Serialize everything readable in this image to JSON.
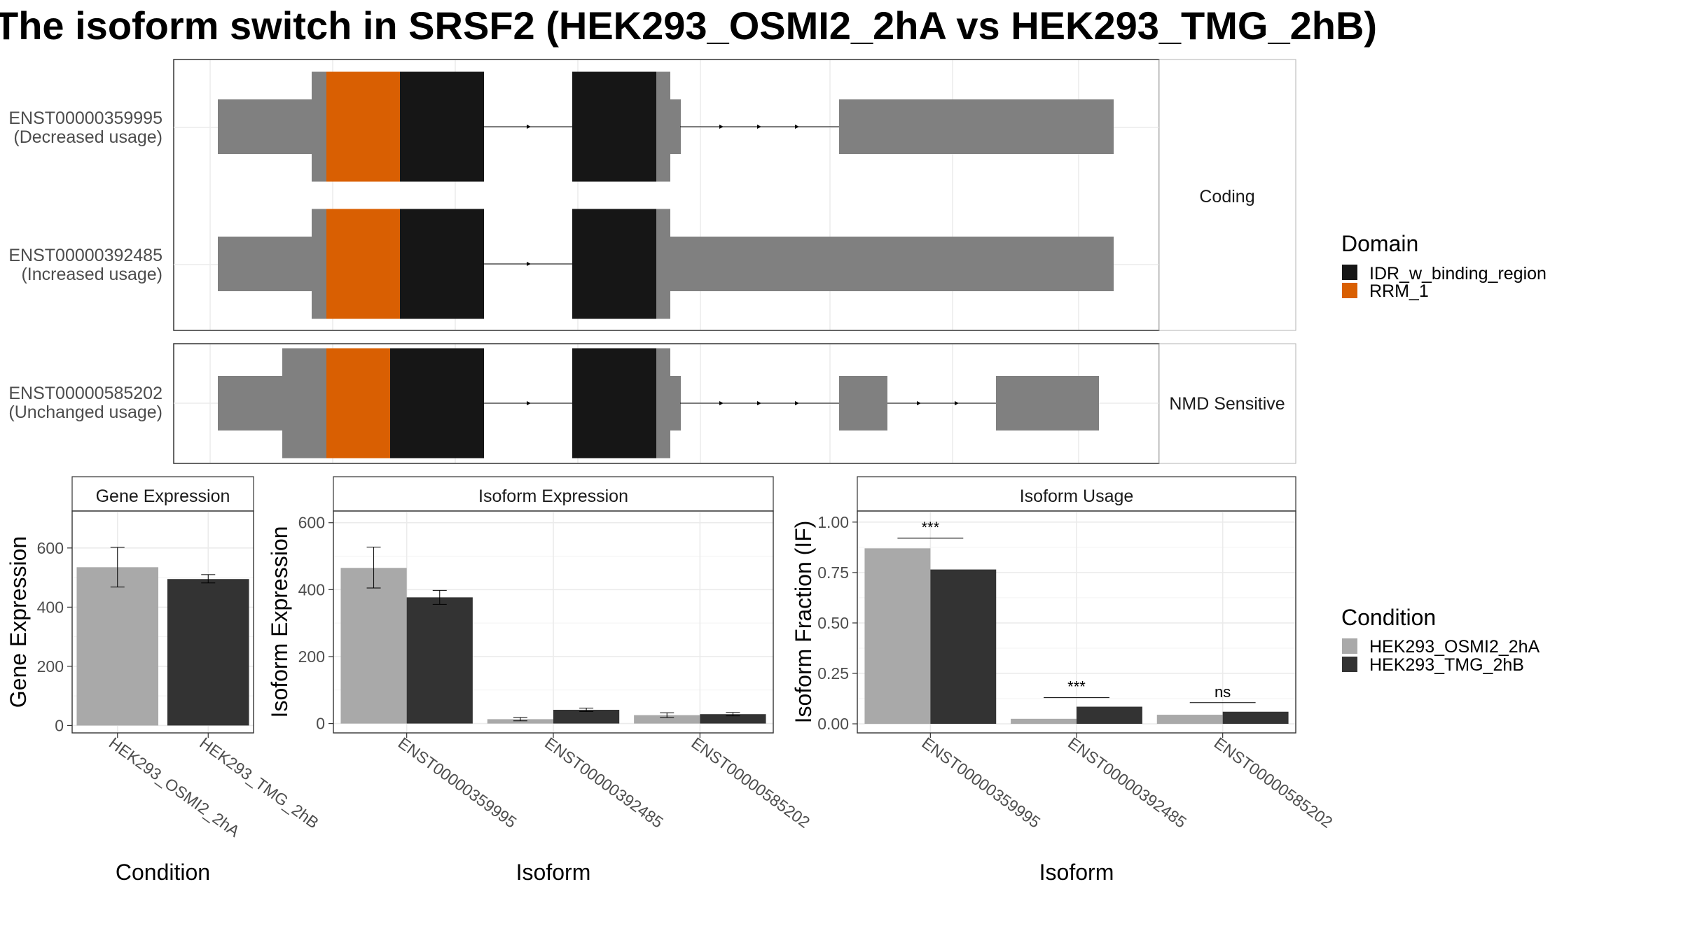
{
  "title": "The isoform switch in SRSF2 (HEK293_OSMI2_2hA vs HEK293_TMG_2hB)",
  "colors": {
    "exon": "#808080",
    "idr": "#161616",
    "rrm": "#d95f02",
    "cond_a": "#a9a9a9",
    "cond_b": "#333333",
    "grid": "#ebebeb",
    "panel_border": "#333333",
    "strip_border": "#b3b3b3"
  },
  "structure": {
    "panels": [
      {
        "label": "Coding",
        "transcripts": [
          {
            "id": "ENST00000359995",
            "usage": "(Decreased usage)"
          },
          {
            "id": "ENST00000392485",
            "usage": "(Increased usage)"
          }
        ]
      },
      {
        "label": "NMD Sensitive",
        "transcripts": [
          {
            "id": "ENST00000585202",
            "usage": "(Unchanged usage)"
          }
        ]
      }
    ]
  },
  "legend_domain": {
    "title": "Domain",
    "items": [
      {
        "label": "IDR_w_binding_region",
        "color": "#161616"
      },
      {
        "label": "RRM_1",
        "color": "#d95f02"
      }
    ]
  },
  "legend_condition": {
    "title": "Condition",
    "items": [
      {
        "label": "HEK293_OSMI2_2hA",
        "color": "#a9a9a9"
      },
      {
        "label": "HEK293_TMG_2hB",
        "color": "#333333"
      }
    ]
  },
  "chart_data": [
    {
      "type": "bar",
      "title": "Gene Expression",
      "xlabel": "Condition",
      "ylabel": "Gene Expression",
      "categories": [
        "HEK293_OSMI2_2hA",
        "HEK293_TMG_2hB"
      ],
      "values": [
        535,
        495
      ],
      "errors": [
        [
          468,
          602
        ],
        [
          482,
          510
        ]
      ],
      "colors": [
        "#a9a9a9",
        "#333333"
      ],
      "ylim": [
        -25,
        725
      ],
      "yticks": [
        0,
        200,
        400,
        600
      ],
      "grid": true
    },
    {
      "type": "bar",
      "title": "Isoform Expression",
      "xlabel": "Isoform",
      "ylabel": "Isoform Expression",
      "categories": [
        "ENST00000359995",
        "ENST00000392485",
        "ENST00000585202"
      ],
      "series": [
        {
          "name": "HEK293_OSMI2_2hA",
          "values": [
            465,
            13,
            25
          ],
          "errors": [
            [
              405,
              527
            ],
            [
              8,
              18
            ],
            [
              18,
              32
            ]
          ]
        },
        {
          "name": "HEK293_TMG_2hB",
          "values": [
            377,
            41,
            28
          ],
          "errors": [
            [
              356,
              398
            ],
            [
              36,
              46
            ],
            [
              23,
              33
            ]
          ]
        }
      ],
      "ylim": [
        -28,
        635
      ],
      "yticks": [
        0,
        200,
        400,
        600
      ],
      "grid": true
    },
    {
      "type": "bar",
      "title": "Isoform Usage",
      "xlabel": "Isoform",
      "ylabel": "Isoform Fraction (IF)",
      "categories": [
        "ENST00000359995",
        "ENST00000392485",
        "ENST00000585202"
      ],
      "series": [
        {
          "name": "HEK293_OSMI2_2hA",
          "values": [
            0.87,
            0.025,
            0.045
          ]
        },
        {
          "name": "HEK293_TMG_2hB",
          "values": [
            0.765,
            0.085,
            0.06
          ]
        }
      ],
      "annotations": [
        {
          "category": "ENST00000359995",
          "text": "***",
          "y": 0.92
        },
        {
          "category": "ENST00000392485",
          "text": "***",
          "y": 0.13
        },
        {
          "category": "ENST00000585202",
          "text": "ns",
          "y": 0.105
        }
      ],
      "ylim": [
        -0.045,
        1.055
      ],
      "yticks": [
        "0.00",
        "0.25",
        "0.50",
        "0.75",
        "1.00"
      ],
      "grid": true
    }
  ]
}
